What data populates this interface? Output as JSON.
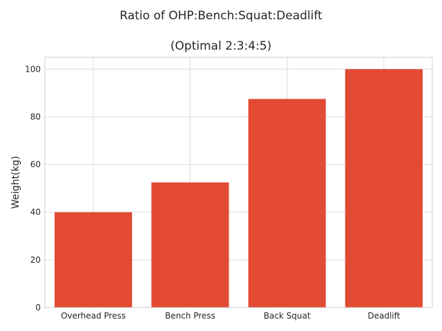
{
  "chart_data": {
    "type": "bar",
    "title": "Ratio of OHP:Bench:Squat:Deadlift",
    "subtitle": "(Optimal 2:3:4:5)",
    "xlabel": "",
    "ylabel": "Weight(kg)",
    "categories": [
      "Overhead Press",
      "Bench Press",
      "Back Squat",
      "Deadlift"
    ],
    "values": [
      40,
      52.5,
      87.5,
      100
    ],
    "ylim": [
      0,
      105
    ],
    "yticks": [
      0,
      20,
      40,
      60,
      80,
      100
    ],
    "grid": true,
    "bar_color": "#e24a33",
    "grid_color": "#dcdcdc",
    "spine_color": "#cccccc"
  }
}
